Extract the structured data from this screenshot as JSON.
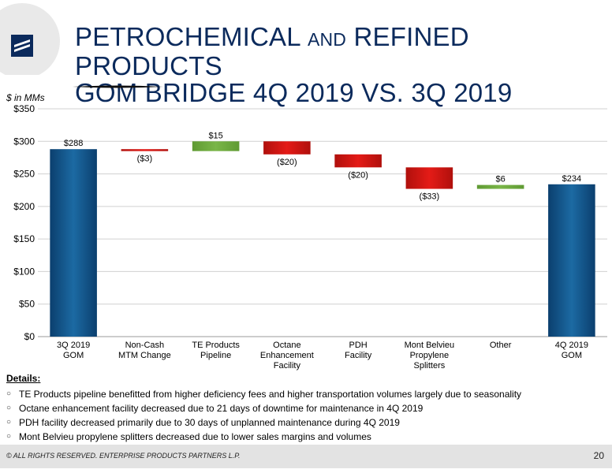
{
  "header": {
    "title_line1_part1": "PETROCHEMICAL ",
    "title_line1_and": "AND",
    "title_line1_part2": " REFINED PRODUCTS",
    "title_line2": "GOM BRIDGE 4Q 2019 VS. 3Q 2019",
    "logo_icon": "enterprise-logo-icon"
  },
  "units_label": "$ in MMs",
  "colors": {
    "total": "#1c6aa3",
    "increase": "#7ab648",
    "decrease": "#e41b17",
    "grid": "#d0d0d0",
    "title": "#0b2a5c"
  },
  "chart_data": {
    "type": "waterfall",
    "ylim": [
      0,
      350
    ],
    "y_ticks": [
      0,
      50,
      100,
      150,
      200,
      250,
      300,
      350
    ],
    "y_tick_labels": [
      "$0",
      "$50",
      "$100",
      "$150",
      "$200",
      "$250",
      "$300",
      "$350"
    ],
    "grid": true,
    "categories": [
      [
        "3Q 2019",
        "GOM"
      ],
      [
        "Non-Cash",
        "MTM Change"
      ],
      [
        "TE Products",
        "Pipeline"
      ],
      [
        "Octane",
        "Enhancement",
        "Facility"
      ],
      [
        "PDH",
        "Facility"
      ],
      [
        "Mont Belvieu",
        "Propylene",
        "Splitters"
      ],
      [
        "Other"
      ],
      [
        "4Q 2019",
        "GOM"
      ]
    ],
    "steps": [
      {
        "kind": "total",
        "value": 288,
        "label": "$288"
      },
      {
        "kind": "delta",
        "value": -3,
        "label": "($3)"
      },
      {
        "kind": "delta",
        "value": 15,
        "label": "$15"
      },
      {
        "kind": "delta",
        "value": -20,
        "label": "($20)"
      },
      {
        "kind": "delta",
        "value": -20,
        "label": "($20)"
      },
      {
        "kind": "delta",
        "value": -33,
        "label": "($33)"
      },
      {
        "kind": "delta",
        "value": 6,
        "label": "$6"
      },
      {
        "kind": "total",
        "value": 234,
        "label": "$234"
      }
    ]
  },
  "details": {
    "heading": "Details",
    "heading_colon": ":",
    "bullet_glyph": "○",
    "items": [
      "TE Products pipeline benefitted from higher deficiency fees and higher transportation volumes largely due to seasonality",
      "Octane enhancement facility decreased due to 21 days of downtime for maintenance in 4Q 2019",
      "PDH facility decreased primarily due to 30 days of unplanned maintenance during 4Q 2019",
      "Mont Belvieu propylene splitters decreased due to lower sales margins and volumes"
    ]
  },
  "footer": {
    "copyright": "© ALL RIGHTS RESERVED. ENTERPRISE PRODUCTS PARTNERS L.P.",
    "page_number": "20"
  }
}
